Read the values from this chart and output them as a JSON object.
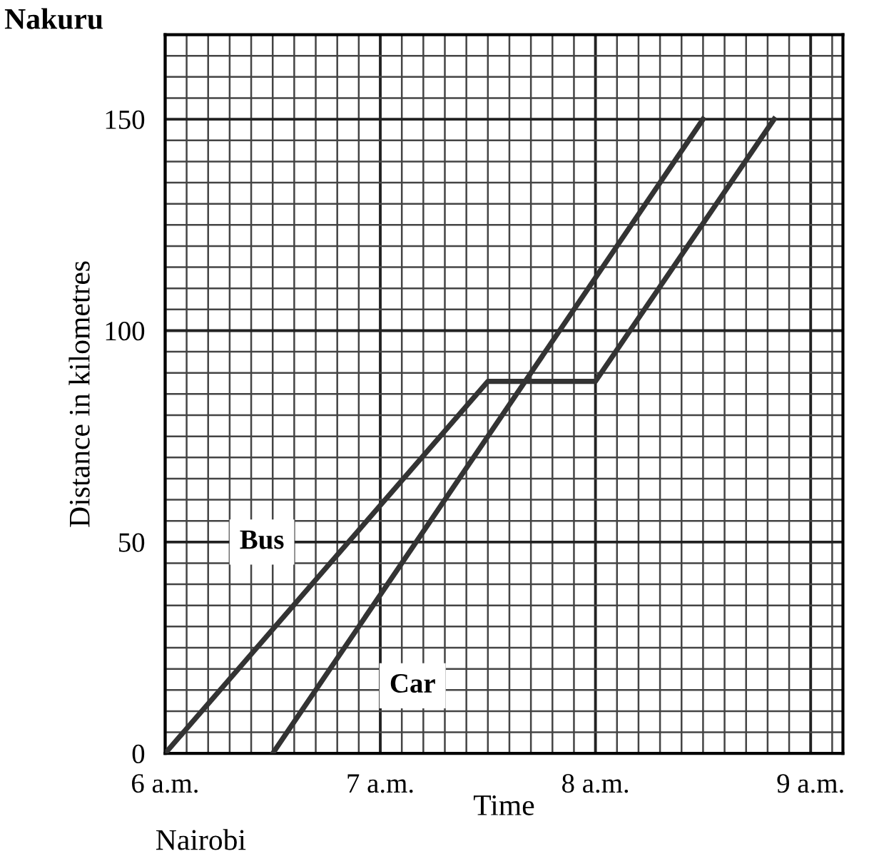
{
  "chart_data": {
    "type": "line",
    "xlabel": "Time",
    "ylabel": "Distance in kilometres",
    "series": [
      {
        "name": "Bus",
        "color": "#333333",
        "x": [
          6,
          7.5,
          8,
          8.83
        ],
        "values": [
          0,
          88,
          88,
          150
        ]
      },
      {
        "name": "Car",
        "color": "#333333",
        "x": [
          6.5,
          8.5
        ],
        "values": [
          0,
          150
        ]
      }
    ],
    "xlim": [
      6,
      9.15
    ],
    "ylim": [
      0,
      170
    ],
    "xticks": [
      {
        "value": 6,
        "label": "6 a.m."
      },
      {
        "value": 7,
        "label": "7 a.m."
      },
      {
        "value": 8,
        "label": "8 a.m."
      },
      {
        "value": 9,
        "label": "9 a.m."
      }
    ],
    "yticks": [
      0,
      50,
      100,
      150
    ],
    "annotations": [
      "Nakuru",
      "Nairobi"
    ],
    "grid": true,
    "marker": "none",
    "line_style": "solid"
  }
}
